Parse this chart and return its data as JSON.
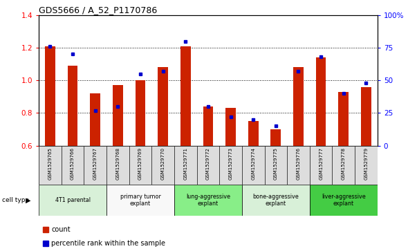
{
  "title": "GDS5666 / A_52_P1170786",
  "samples": [
    "GSM1529765",
    "GSM1529766",
    "GSM1529767",
    "GSM1529768",
    "GSM1529769",
    "GSM1529770",
    "GSM1529771",
    "GSM1529772",
    "GSM1529773",
    "GSM1529774",
    "GSM1529775",
    "GSM1529776",
    "GSM1529777",
    "GSM1529778",
    "GSM1529779"
  ],
  "count_values": [
    1.21,
    1.09,
    0.92,
    0.97,
    1.0,
    1.08,
    1.21,
    0.84,
    0.83,
    0.75,
    0.7,
    1.08,
    1.14,
    0.93,
    0.96
  ],
  "percentile_values": [
    76,
    70,
    27,
    30,
    55,
    57,
    80,
    30,
    22,
    20,
    15,
    57,
    68,
    40,
    48
  ],
  "ylim_left": [
    0.6,
    1.4
  ],
  "ylim_right": [
    0,
    100
  ],
  "yticks_left": [
    0.6,
    0.8,
    1.0,
    1.2,
    1.4
  ],
  "yticks_right": [
    0,
    25,
    50,
    75,
    100
  ],
  "ytick_labels_right": [
    "0",
    "25",
    "50",
    "75",
    "100%"
  ],
  "groups": [
    {
      "label": "4T1 parental",
      "start": 0,
      "end": 3,
      "color": "#d8f0d8"
    },
    {
      "label": "primary tumor\nexplant",
      "start": 3,
      "end": 6,
      "color": "#f8f8f8"
    },
    {
      "label": "lung-aggressive\nexplant",
      "start": 6,
      "end": 9,
      "color": "#88ee88"
    },
    {
      "label": "bone-aggressive\nexplant",
      "start": 9,
      "end": 12,
      "color": "#d8f0d8"
    },
    {
      "label": "liver-aggressive\nexplant",
      "start": 12,
      "end": 15,
      "color": "#44cc44"
    }
  ],
  "bar_color": "#cc2200",
  "dot_color": "#0000cc",
  "bg_color": "#ffffff",
  "grid_color": "#000000",
  "sample_row_color": "#cccccc",
  "cell_type_label": "cell type",
  "legend_count": "count",
  "legend_percentile": "percentile rank within the sample"
}
